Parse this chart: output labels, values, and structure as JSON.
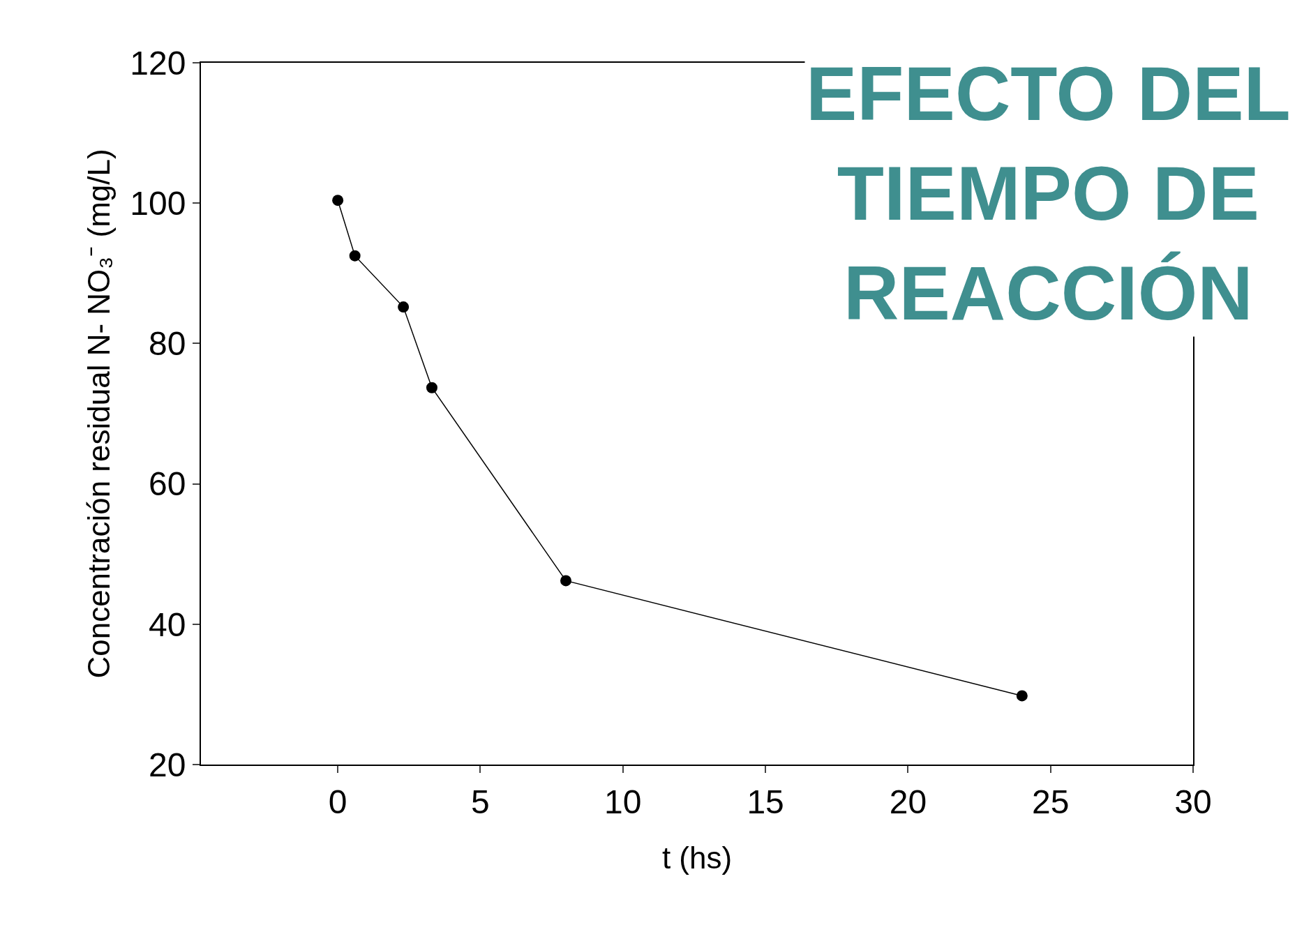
{
  "chart_data": {
    "type": "line",
    "title": "EFECTO DEL TIEMPO DE REACCIÓN",
    "xlabel": "t (hs)",
    "ylabel": "Concentración residual N- NO₃⁻ (mg/L)",
    "x": [
      0,
      0.6,
      2.3,
      3.3,
      8,
      24
    ],
    "series": [
      {
        "color": "#000000",
        "values": [
          100.4,
          92.5,
          85.2,
          73.7,
          46.2,
          29.8
        ]
      }
    ],
    "xlim": [
      -4.8,
      30
    ],
    "xticks": [
      0,
      5,
      10,
      15,
      20,
      25,
      30
    ],
    "ylim": [
      20,
      120
    ],
    "yticks": [
      20,
      40,
      60,
      80,
      100,
      120
    ],
    "marker": "circle",
    "line_style": "solid"
  }
}
